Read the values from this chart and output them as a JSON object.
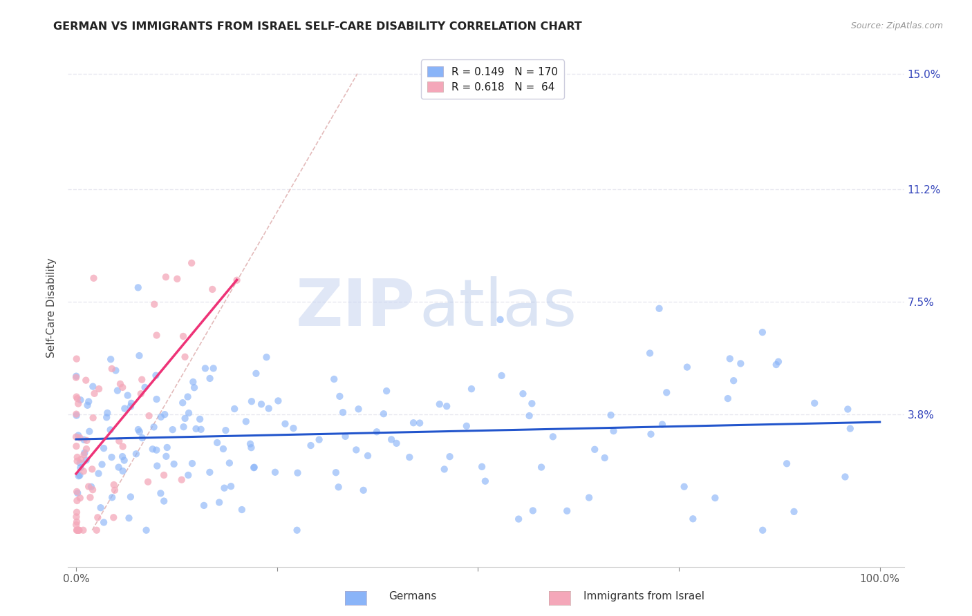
{
  "title": "GERMAN VS IMMIGRANTS FROM ISRAEL SELF-CARE DISABILITY CORRELATION CHART",
  "source": "Source: ZipAtlas.com",
  "ylabel": "Self-Care Disability",
  "yticks": [
    0.0,
    0.038,
    0.075,
    0.112,
    0.15
  ],
  "ytick_labels": [
    "",
    "3.8%",
    "7.5%",
    "11.2%",
    "15.0%"
  ],
  "xlim": [
    -0.01,
    1.03
  ],
  "ylim": [
    -0.012,
    0.158
  ],
  "german_R": 0.149,
  "german_N": 170,
  "israel_R": 0.618,
  "israel_N": 64,
  "german_color": "#8ab4f8",
  "israel_color": "#f4a7b9",
  "german_line_color": "#2255cc",
  "israel_line_color": "#ee3377",
  "diagonal_color": "#ddaaaa",
  "legend_label_german": "Germans",
  "legend_label_israel": "Immigrants from Israel",
  "watermark_zip": "ZIP",
  "watermark_atlas": "atlas",
  "background_color": "#ffffff",
  "title_fontsize": 12,
  "axis_label_color": "#3344bb",
  "grid_color": "#e8e8f0"
}
